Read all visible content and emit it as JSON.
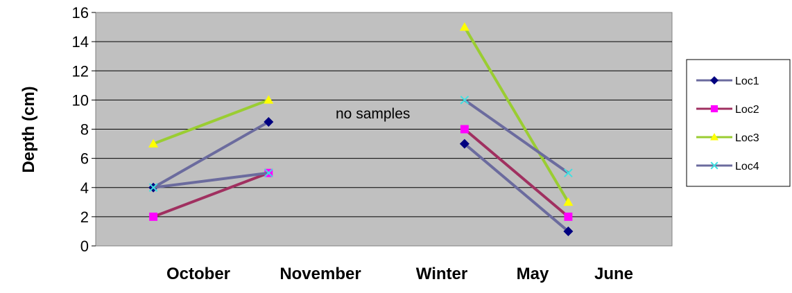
{
  "chart_data": {
    "type": "line",
    "ylabel": "Depth (cm)",
    "xlabel": "",
    "ylim": [
      0,
      16
    ],
    "yticks": [
      0,
      2,
      4,
      6,
      8,
      10,
      12,
      14,
      16
    ],
    "grid": true,
    "legend_position": "right",
    "categories": [
      "October",
      "November",
      "Winter",
      "May",
      "June"
    ],
    "annotation": "no samples",
    "background_color": "#c0c0c0",
    "series": [
      {
        "name": "Loc1",
        "color": "#6b6b9e",
        "marker_color": "#000080",
        "marker": "diamond",
        "segments": [
          [
            {
              "x": 0.5,
              "y": 4
            },
            {
              "x": 1.5,
              "y": 8.5
            }
          ],
          [
            {
              "x": 3.2,
              "y": 7
            },
            {
              "x": 4.1,
              "y": 1
            }
          ]
        ]
      },
      {
        "name": "Loc2",
        "color": "#a03060",
        "marker_color": "#ff00ff",
        "marker": "square",
        "segments": [
          [
            {
              "x": 0.5,
              "y": 2
            },
            {
              "x": 1.5,
              "y": 5
            }
          ],
          [
            {
              "x": 3.2,
              "y": 8
            },
            {
              "x": 4.1,
              "y": 2
            }
          ]
        ]
      },
      {
        "name": "Loc3",
        "color": "#9acd32",
        "marker_color": "#ffff00",
        "marker": "triangle",
        "segments": [
          [
            {
              "x": 0.5,
              "y": 7
            },
            {
              "x": 1.5,
              "y": 10
            }
          ],
          [
            {
              "x": 3.2,
              "y": 15
            },
            {
              "x": 4.1,
              "y": 3
            }
          ]
        ]
      },
      {
        "name": "Loc4",
        "color": "#6b6b9e",
        "marker_color": "#40e0e0",
        "marker": "x",
        "segments": [
          [
            {
              "x": 0.5,
              "y": 4
            },
            {
              "x": 1.5,
              "y": 5
            }
          ],
          [
            {
              "x": 3.2,
              "y": 10
            },
            {
              "x": 4.1,
              "y": 5
            }
          ]
        ]
      }
    ]
  }
}
